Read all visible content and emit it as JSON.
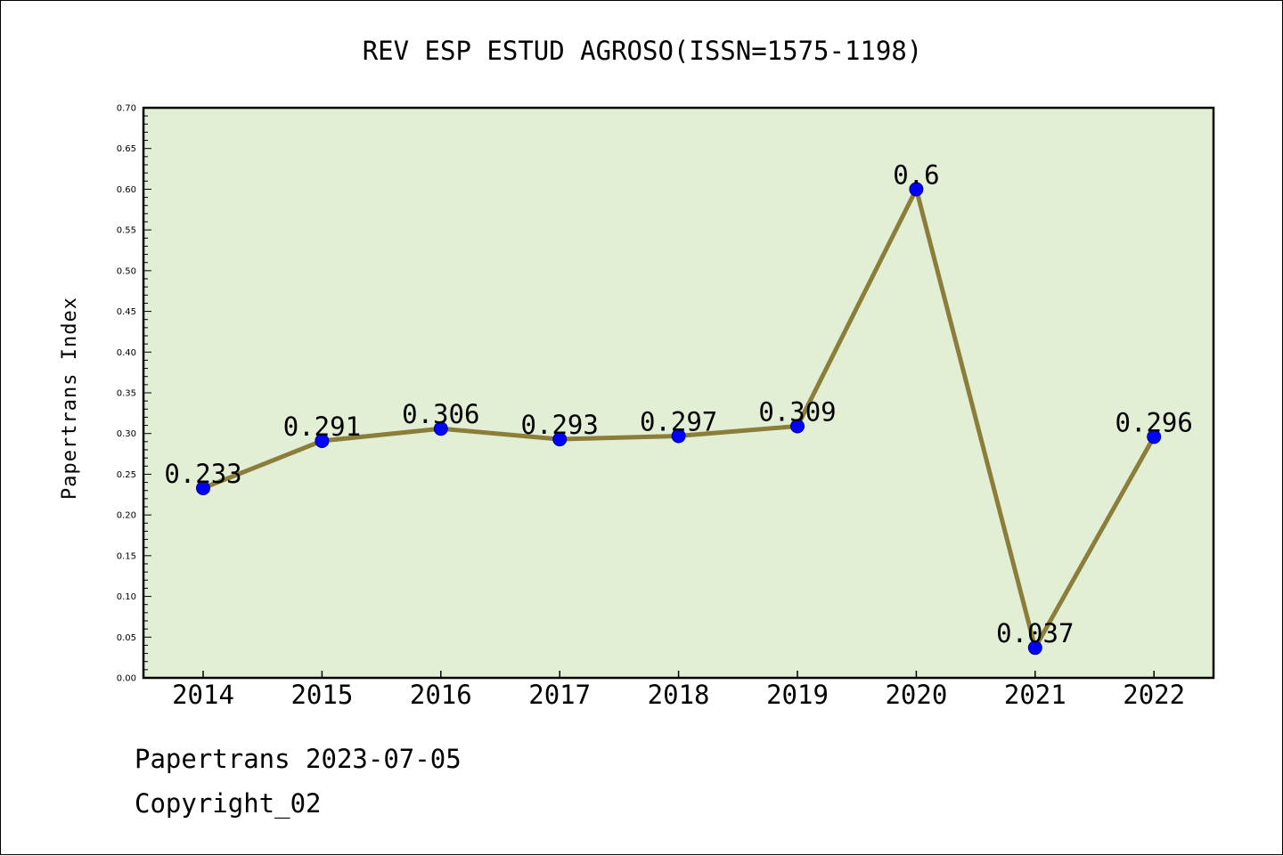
{
  "chart_data": {
    "type": "line",
    "title": "REV ESP ESTUD AGROSO(ISSN=1575-1198)",
    "xlabel": "",
    "ylabel": "Papertrans Index",
    "categories": [
      "2014",
      "2015",
      "2016",
      "2017",
      "2018",
      "2019",
      "2020",
      "2021",
      "2022"
    ],
    "series": [
      {
        "values": [
          0.233,
          0.291,
          0.306,
          0.293,
          0.297,
          0.309,
          0.6,
          0.037,
          0.296
        ],
        "labels": [
          "0.233",
          "0.291",
          "0.306",
          "0.293",
          "0.297",
          "0.309",
          "0.6",
          "0.037",
          "0.296"
        ],
        "line_color": "#8b7d3a",
        "marker_color": "#0000ff"
      }
    ],
    "ylim": [
      0,
      0.7
    ],
    "yticks": [
      "0.00",
      "0.05",
      "0.10",
      "0.15",
      "0.20",
      "0.25",
      "0.30",
      "0.35",
      "0.40",
      "0.45",
      "0.50",
      "0.55",
      "0.60",
      "0.65",
      "0.70"
    ],
    "plot_background": "#e2efd5",
    "grid": false,
    "legend": "none"
  },
  "footer": {
    "line1": "Papertrans 2023-07-05",
    "line2": "Copyright_02"
  }
}
